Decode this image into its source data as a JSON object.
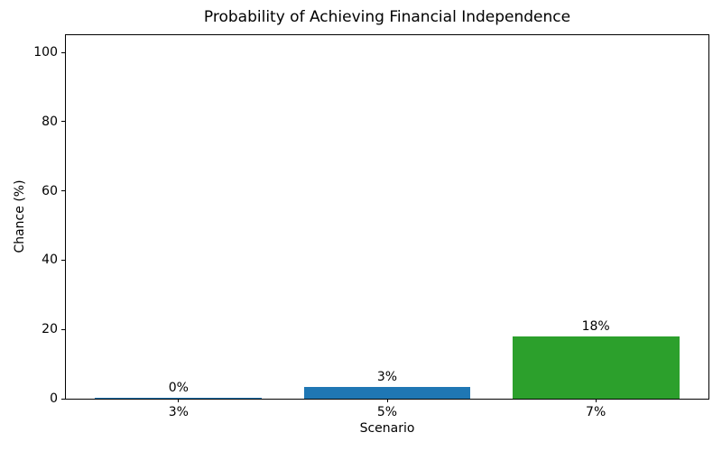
{
  "chart_data": {
    "type": "bar",
    "title": "Probability of Achieving Financial Independence",
    "xlabel": "Scenario",
    "ylabel": "Chance (%)",
    "categories": [
      "3%",
      "5%",
      "7%"
    ],
    "values": [
      0.3,
      3.3,
      18.0
    ],
    "value_labels": [
      "0%",
      "3%",
      "18%"
    ],
    "bar_colors": [
      "#1f77b4",
      "#1f77b4",
      "#2ca02c"
    ],
    "yticks": [
      0,
      20,
      40,
      60,
      80,
      100
    ],
    "ylim": [
      0,
      105
    ],
    "grid": false,
    "legend_position": "none",
    "axis_color": "#000000",
    "background_color": "#ffffff"
  }
}
